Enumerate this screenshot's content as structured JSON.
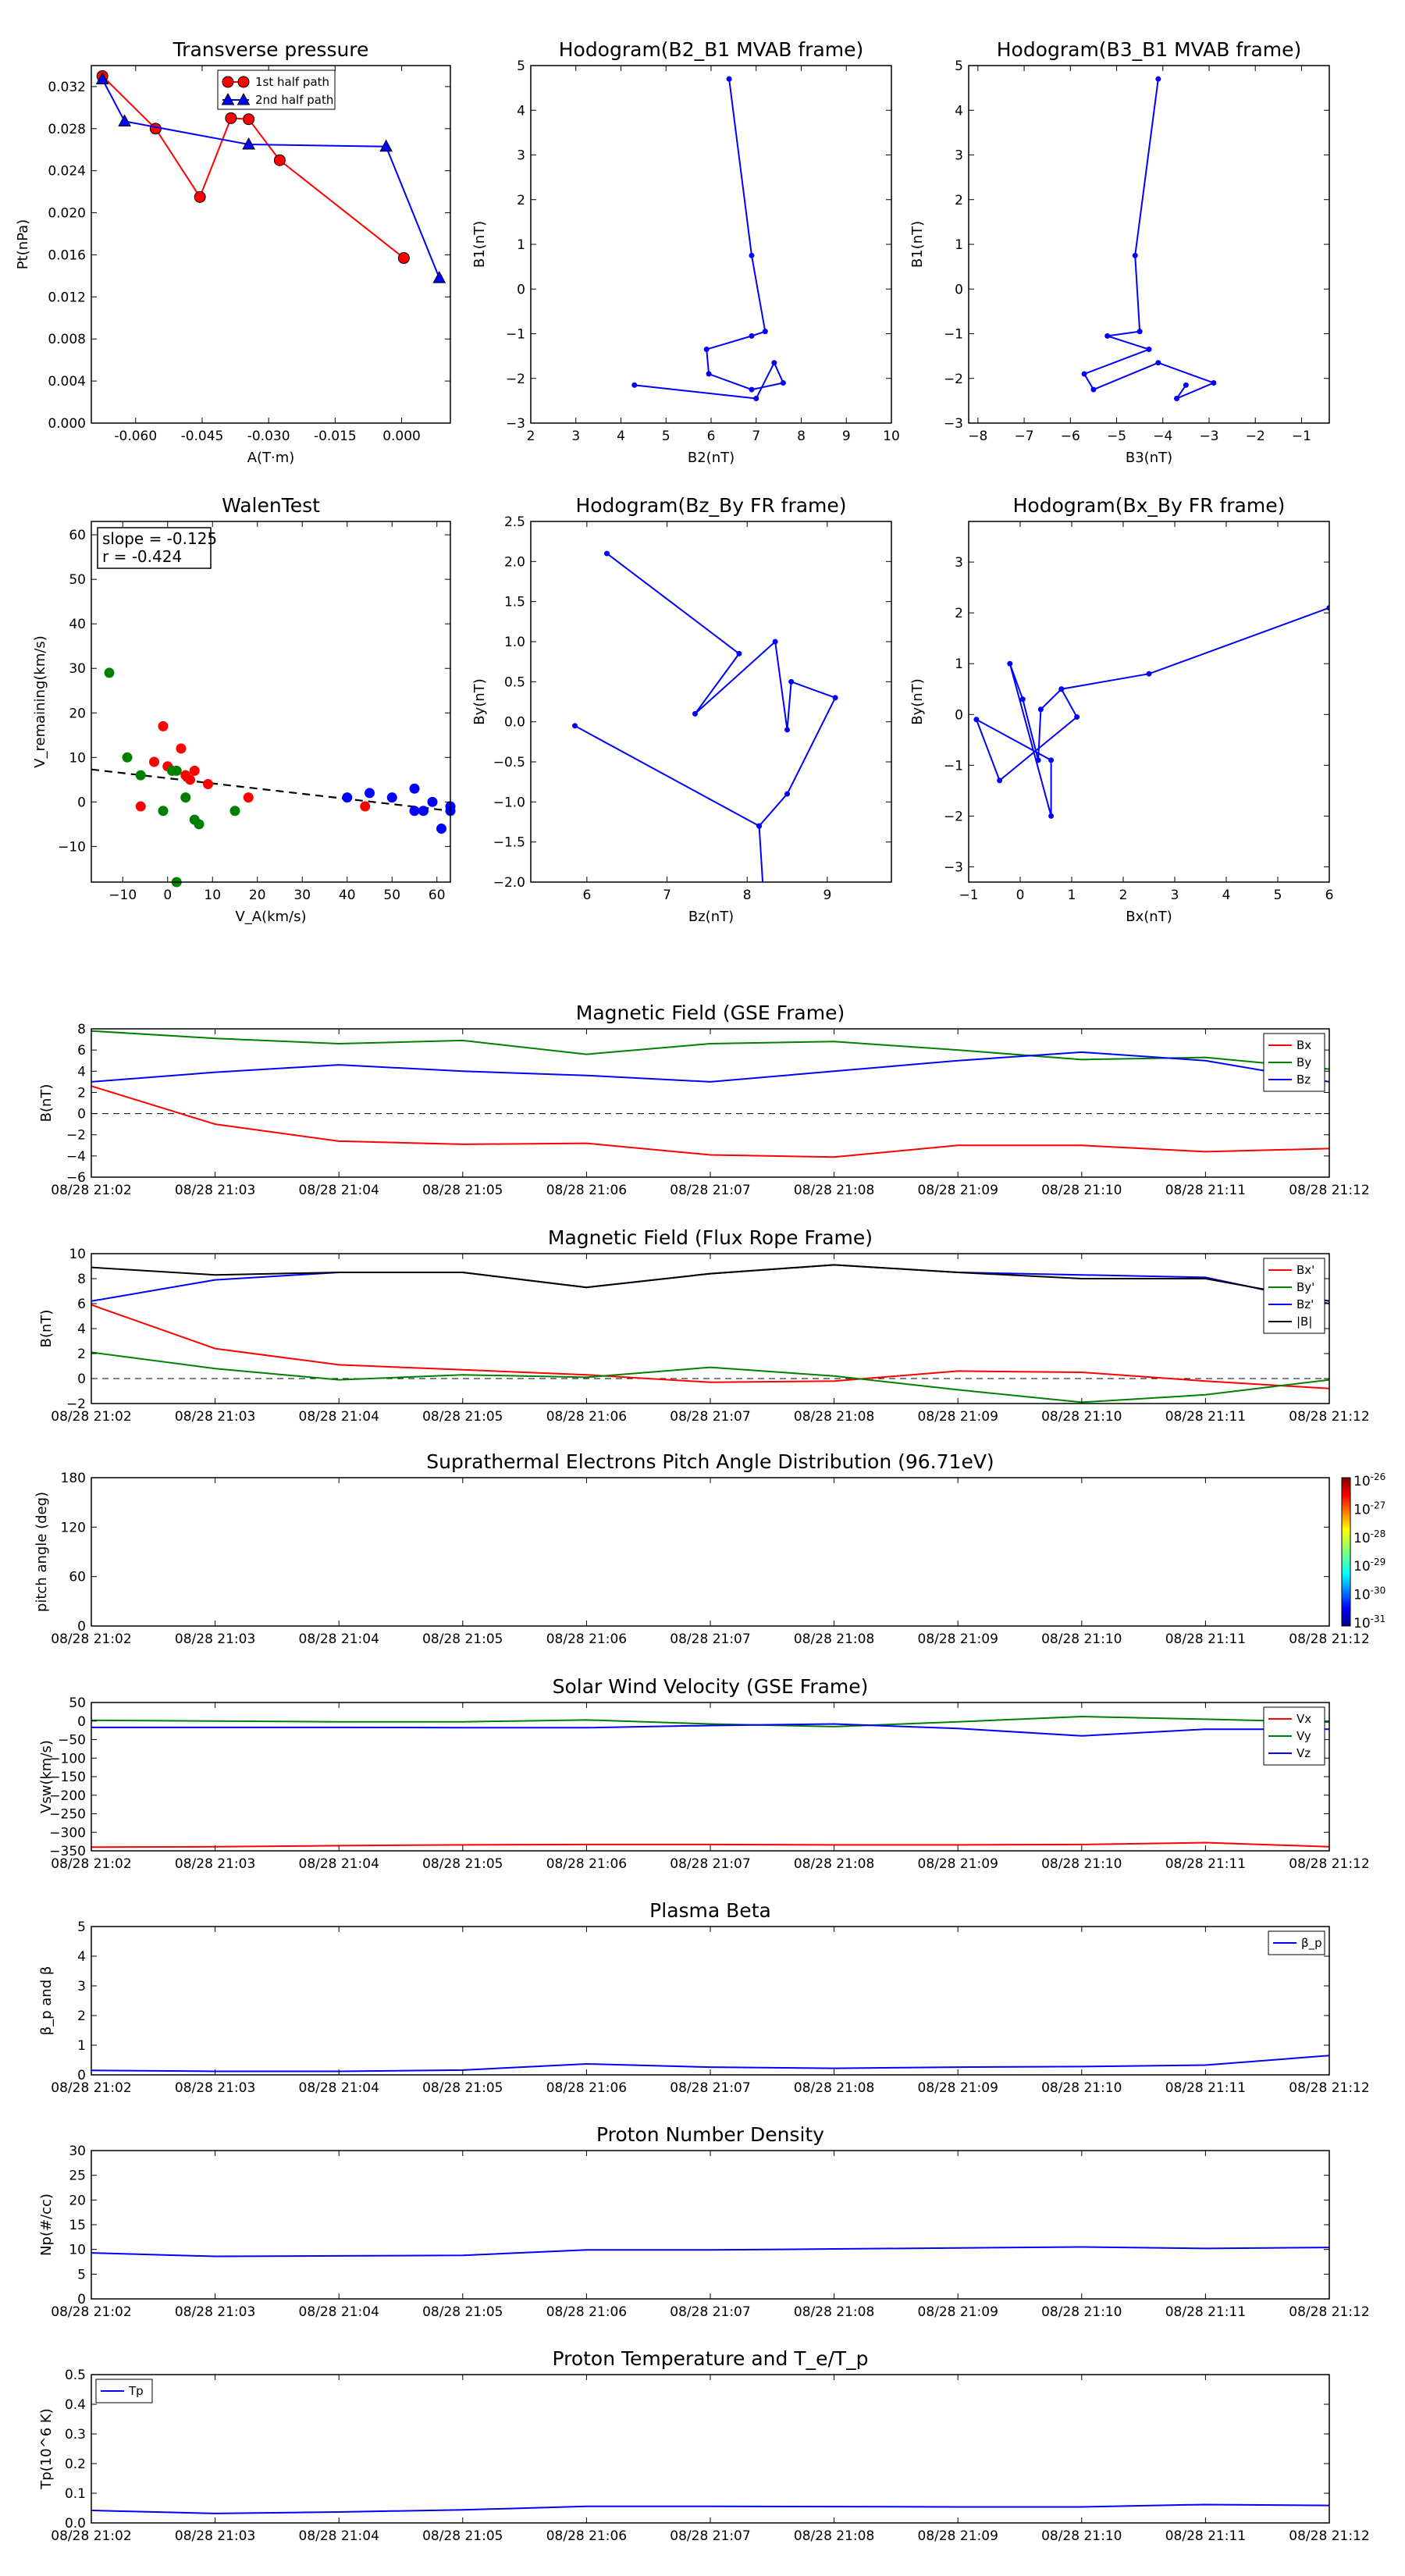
{
  "chart_data": [
    {
      "id": "transverse-pressure",
      "type": "line",
      "title": "Transverse pressure",
      "xlabel": "A(T·m)",
      "ylabel": "Pt(nPa)",
      "xlim": [
        -0.07,
        0.011
      ],
      "ylim": [
        0,
        0.034
      ],
      "xticks": [
        -0.06,
        -0.045,
        -0.03,
        -0.015,
        0.0
      ],
      "xtick_labels": [
        "-0.060",
        "-0.045",
        "-0.030",
        "-0.015",
        "0.000"
      ],
      "yticks": [
        0,
        0.004,
        0.008,
        0.012,
        0.016,
        0.02,
        0.024,
        0.028,
        0.032
      ],
      "ytick_labels": [
        "0.000",
        "0.004",
        "0.008",
        "0.012",
        "0.016",
        "0.020",
        "0.024",
        "0.028",
        "0.032"
      ],
      "legend_position": "top-center",
      "series": [
        {
          "name": "1st half path",
          "color": "#ff0000",
          "marker": "circle",
          "x": [
            -0.0675,
            -0.0555,
            -0.0455,
            -0.0385,
            -0.0345,
            -0.0275,
            0.0005
          ],
          "y": [
            0.033,
            0.028,
            0.0215,
            0.029,
            0.0289,
            0.025,
            0.0157
          ]
        },
        {
          "name": "2nd half path",
          "color": "#0000ff",
          "marker": "triangle",
          "x": [
            -0.0675,
            -0.0625,
            -0.0345,
            -0.0035,
            0.0085
          ],
          "y": [
            0.0327,
            0.0287,
            0.0265,
            0.0263,
            0.0138
          ]
        }
      ]
    },
    {
      "id": "hodogram-b2-b1",
      "type": "line",
      "title": "Hodogram(B2_B1 MVAB frame)",
      "xlabel": "B2(nT)",
      "ylabel": "B1(nT)",
      "xlim": [
        2,
        10
      ],
      "ylim": [
        -3,
        5
      ],
      "xticks": [
        2,
        3,
        4,
        5,
        6,
        7,
        8,
        9,
        10
      ],
      "yticks": [
        -3,
        -2,
        -1,
        0,
        1,
        2,
        3,
        4,
        5
      ],
      "series": [
        {
          "color": "#0000ff",
          "x": [
            6.4,
            6.9,
            7.2,
            6.9,
            5.9,
            5.95,
            6.9,
            7.6,
            7.4,
            7.0,
            4.3
          ],
          "y": [
            4.7,
            0.75,
            -0.95,
            -1.05,
            -1.35,
            -1.9,
            -2.25,
            -2.1,
            -1.65,
            -2.45,
            -2.15
          ]
        }
      ]
    },
    {
      "id": "hodogram-b3-b1",
      "type": "line",
      "title": "Hodogram(B3_B1 MVAB frame)",
      "xlabel": "B3(nT)",
      "ylabel": "B1(nT)",
      "xlim": [
        -8.2,
        -0.4
      ],
      "ylim": [
        -3,
        5
      ],
      "xticks": [
        -8,
        -7,
        -6,
        -5,
        -4,
        -3,
        -2,
        -1
      ],
      "yticks": [
        -3,
        -2,
        -1,
        0,
        1,
        2,
        3,
        4,
        5
      ],
      "series": [
        {
          "color": "#0000ff",
          "x": [
            -4.1,
            -4.6,
            -4.5,
            -5.2,
            -4.3,
            -5.7,
            -5.5,
            -4.1,
            -2.9,
            -3.7,
            -3.5
          ],
          "y": [
            4.7,
            0.75,
            -0.95,
            -1.05,
            -1.35,
            -1.9,
            -2.25,
            -1.65,
            -2.1,
            -2.45,
            -2.15
          ]
        }
      ]
    },
    {
      "id": "walen-test",
      "type": "scatter",
      "title": "WalenTest",
      "xlabel": "V_A(km/s)",
      "ylabel": "V_remaining(km/s)",
      "xlim": [
        -17,
        63
      ],
      "ylim": [
        -18,
        63
      ],
      "xticks": [
        -10,
        0,
        10,
        20,
        30,
        40,
        50,
        60
      ],
      "yticks": [
        -10,
        0,
        10,
        20,
        30,
        40,
        50,
        60
      ],
      "annotation": [
        "slope = -0.125",
        "r = -0.424"
      ],
      "fit_line": {
        "x": [
          -17,
          63
        ],
        "y": [
          7.3,
          -2.0
        ],
        "style": "dashed",
        "color": "#000000"
      },
      "series": [
        {
          "color": "#ff0000",
          "x": [
            -1,
            0,
            -6,
            -3,
            3,
            4,
            6,
            5,
            9,
            18,
            44
          ],
          "y": [
            17,
            8,
            -1,
            9,
            12,
            6,
            7,
            5,
            4,
            1,
            -1
          ]
        },
        {
          "color": "#008000",
          "x": [
            -13,
            -9,
            -6,
            1,
            2,
            4,
            6,
            7,
            15,
            2,
            -1
          ],
          "y": [
            29,
            10,
            6,
            7,
            7,
            1,
            -4,
            -5,
            -2,
            -18,
            -2
          ]
        },
        {
          "color": "#0000ff",
          "x": [
            40,
            45,
            50,
            55,
            55,
            57,
            59,
            61,
            63,
            63
          ],
          "y": [
            1,
            2,
            1,
            3,
            -2,
            -2,
            0,
            -6,
            -1,
            -2
          ]
        }
      ]
    },
    {
      "id": "hodogram-bz-by",
      "type": "line",
      "title": "Hodogram(Bz_By FR frame)",
      "xlabel": "Bz(nT)",
      "ylabel": "By(nT)",
      "xlim": [
        5.3,
        9.8
      ],
      "ylim": [
        -2.0,
        2.5
      ],
      "xticks": [
        6,
        7,
        8,
        9
      ],
      "yticks": [
        -2.0,
        -1.5,
        -1.0,
        -0.5,
        0.0,
        0.5,
        1.0,
        1.5,
        2.0,
        2.5
      ],
      "ytick_labels": [
        "−2.0",
        "−1.5",
        "−1.0",
        "−0.5",
        "0.0",
        "0.5",
        "1.0",
        "1.5",
        "2.0",
        "2.5"
      ],
      "series": [
        {
          "color": "#0000ff",
          "x": [
            6.25,
            7.9,
            7.35,
            8.35,
            8.5,
            8.55,
            9.1,
            8.5,
            8.15,
            8.2,
            8.15,
            5.85
          ],
          "y": [
            2.1,
            0.85,
            0.1,
            1.0,
            -0.1,
            0.5,
            0.3,
            -0.9,
            -1.3,
            -2.1,
            -1.3,
            -0.05
          ]
        }
      ]
    },
    {
      "id": "hodogram-bx-by",
      "type": "line",
      "title": "Hodogram(Bx_By FR frame)",
      "xlabel": "Bx(nT)",
      "ylabel": "By(nT)",
      "xlim": [
        -1,
        6
      ],
      "ylim": [
        -3.3,
        3.8
      ],
      "xticks": [
        -1,
        0,
        1,
        2,
        3,
        4,
        5,
        6
      ],
      "yticks": [
        -3,
        -2,
        -1,
        0,
        1,
        2,
        3
      ],
      "series": [
        {
          "color": "#0000ff",
          "x": [
            6.0,
            2.5,
            0.8,
            0.4,
            0.35,
            0.05,
            -0.2,
            0.6,
            0.6,
            -0.85,
            -0.4,
            1.1,
            0.8
          ],
          "y": [
            2.1,
            0.8,
            0.5,
            0.1,
            -0.9,
            0.3,
            1.0,
            -2.0,
            -0.9,
            -0.1,
            -1.3,
            -0.05,
            0.5
          ]
        }
      ]
    },
    {
      "id": "magnetic-field-gse",
      "type": "line",
      "title": "Magnetic Field (GSE Frame)",
      "ylabel": "B(nT)",
      "ylim": [
        -6,
        8
      ],
      "yticks": [
        -6,
        -4,
        -2,
        0,
        2,
        4,
        6,
        8
      ],
      "legend_position": "right",
      "zero_line": true,
      "x": [
        "08/28 21:02",
        "08/28 21:03",
        "08/28 21:04",
        "08/28 21:05",
        "08/28 21:06",
        "08/28 21:07",
        "08/28 21:08",
        "08/28 21:09",
        "08/28 21:10",
        "08/28 21:11",
        "08/28 21:12"
      ],
      "series": [
        {
          "name": "Bx",
          "color": "#ff0000",
          "values": [
            2.6,
            -1.0,
            -2.6,
            -2.9,
            -2.8,
            -3.9,
            -4.1,
            -3.0,
            -3.0,
            -3.6,
            -3.3
          ]
        },
        {
          "name": "By",
          "color": "#008000",
          "values": [
            7.8,
            7.1,
            6.6,
            6.9,
            5.6,
            6.6,
            6.8,
            6.0,
            5.1,
            5.3,
            4.2
          ]
        },
        {
          "name": "Bz",
          "color": "#0000ff",
          "values": [
            3.0,
            3.9,
            4.6,
            4.0,
            3.6,
            3.0,
            4.0,
            5.0,
            5.8,
            5.0,
            3.0
          ]
        }
      ]
    },
    {
      "id": "magnetic-field-fr",
      "type": "line",
      "title": "Magnetic Field (Flux Rope Frame)",
      "ylabel": "B(nT)",
      "ylim": [
        -2,
        10
      ],
      "yticks": [
        -2,
        0,
        2,
        4,
        6,
        8,
        10
      ],
      "legend_position": "right",
      "zero_line": true,
      "x": [
        "08/28 21:02",
        "08/28 21:03",
        "08/28 21:04",
        "08/28 21:05",
        "08/28 21:06",
        "08/28 21:07",
        "08/28 21:08",
        "08/28 21:09",
        "08/28 21:10",
        "08/28 21:11",
        "08/28 21:12"
      ],
      "series": [
        {
          "name": "Bx'",
          "color": "#ff0000",
          "values": [
            5.9,
            2.4,
            1.1,
            0.7,
            0.3,
            -0.3,
            -0.2,
            0.6,
            0.5,
            -0.2,
            -0.8
          ]
        },
        {
          "name": "By'",
          "color": "#008000",
          "values": [
            2.1,
            0.8,
            -0.1,
            0.3,
            0.1,
            0.9,
            0.2,
            -0.9,
            -1.9,
            -1.3,
            -0.1
          ]
        },
        {
          "name": "Bz'",
          "color": "#0000ff",
          "values": [
            6.2,
            7.9,
            8.5,
            8.5,
            7.3,
            8.4,
            9.1,
            8.5,
            8.3,
            8.1,
            6.0
          ]
        },
        {
          "name": "|B|",
          "color": "#000000",
          "values": [
            8.9,
            8.3,
            8.5,
            8.5,
            7.3,
            8.4,
            9.1,
            8.5,
            8.0,
            8.0,
            6.2
          ]
        }
      ]
    },
    {
      "id": "pitch-angle",
      "type": "heatmap",
      "title": "Suprathermal Electrons Pitch Angle Distribution (96.71eV)",
      "ylabel": "pitch angle (deg)",
      "ylim": [
        0,
        180
      ],
      "yticks": [
        0,
        60,
        120,
        180
      ],
      "x": [
        "08/28 21:02",
        "08/28 21:03",
        "08/28 21:04",
        "08/28 21:05",
        "08/28 21:06",
        "08/28 21:07",
        "08/28 21:08",
        "08/28 21:09",
        "08/28 21:10",
        "08/28 21:11",
        "08/28 21:12"
      ],
      "colorbar": {
        "ticks": [
          "10",
          "10",
          "10",
          "10",
          "10",
          "10"
        ],
        "exponents": [
          "-26",
          "-27",
          "-28",
          "-29",
          "-30",
          "-31"
        ]
      }
    },
    {
      "id": "solar-wind-velocity",
      "type": "line",
      "title": "Solar Wind Velocity (GSE Frame)",
      "ylabel": "Vsw(km/s)",
      "ylim": [
        -350,
        50
      ],
      "yticks": [
        -350,
        -300,
        -250,
        -200,
        -150,
        -100,
        -50,
        0,
        50
      ],
      "ytick_labels": [
        "−350",
        "−300",
        "−250",
        "−200",
        "−150",
        "−100",
        "−50",
        "0",
        "50"
      ],
      "legend_position": "right",
      "x": [
        "08/28 21:02",
        "08/28 21:03",
        "08/28 21:04",
        "08/28 21:05",
        "08/28 21:06",
        "08/28 21:07",
        "08/28 21:08",
        "08/28 21:09",
        "08/28 21:10",
        "08/28 21:11",
        "08/28 21:12"
      ],
      "series": [
        {
          "name": "Vx",
          "color": "#ff0000",
          "values": [
            -340,
            -339,
            -336,
            -334,
            -333,
            -333,
            -334,
            -334,
            -333,
            -328,
            -339
          ]
        },
        {
          "name": "Vy",
          "color": "#008000",
          "values": [
            2,
            0,
            -2,
            -2,
            3,
            -8,
            -15,
            -2,
            12,
            5,
            -3
          ]
        },
        {
          "name": "Vz",
          "color": "#0000ff",
          "values": [
            -17,
            -17,
            -17,
            -18,
            -18,
            -12,
            -8,
            -20,
            -40,
            -22,
            -22
          ]
        }
      ]
    },
    {
      "id": "plasma-beta",
      "type": "line",
      "title": "Plasma Beta",
      "ylabel": "β_p and β",
      "ylim": [
        0,
        5
      ],
      "yticks": [
        0,
        1,
        2,
        3,
        4,
        5
      ],
      "legend_position": "top-right",
      "x": [
        "08/28 21:02",
        "08/28 21:03",
        "08/28 21:04",
        "08/28 21:05",
        "08/28 21:06",
        "08/28 21:07",
        "08/28 21:08",
        "08/28 21:09",
        "08/28 21:10",
        "08/28 21:11",
        "08/28 21:12"
      ],
      "series": [
        {
          "name": "β_p",
          "color": "#0000ff",
          "values": [
            0.15,
            0.12,
            0.12,
            0.16,
            0.37,
            0.26,
            0.22,
            0.26,
            0.28,
            0.33,
            0.65
          ]
        }
      ]
    },
    {
      "id": "proton-density",
      "type": "line",
      "title": "Proton Number Density",
      "ylabel": "Np(#/cc)",
      "ylim": [
        0,
        30
      ],
      "yticks": [
        0,
        5,
        10,
        15,
        20,
        25,
        30
      ],
      "x": [
        "08/28 21:02",
        "08/28 21:03",
        "08/28 21:04",
        "08/28 21:05",
        "08/28 21:06",
        "08/28 21:07",
        "08/28 21:08",
        "08/28 21:09",
        "08/28 21:10",
        "08/28 21:11",
        "08/28 21:12"
      ],
      "series": [
        {
          "color": "#0000ff",
          "values": [
            9.3,
            8.6,
            8.7,
            8.8,
            9.9,
            9.9,
            10.1,
            10.3,
            10.5,
            10.2,
            10.4
          ]
        }
      ]
    },
    {
      "id": "proton-temperature",
      "type": "line",
      "title": "Proton Temperature and T_e/T_p",
      "ylabel": "Tp(10^6 K)",
      "ylim": [
        0,
        0.5
      ],
      "yticks": [
        0,
        0.1,
        0.2,
        0.3,
        0.4,
        0.5
      ],
      "ytick_labels": [
        "0.0",
        "0.1",
        "0.2",
        "0.3",
        "0.4",
        "0.5"
      ],
      "legend_position": "top-left",
      "x": [
        "08/28 21:02",
        "08/28 21:03",
        "08/28 21:04",
        "08/28 21:05",
        "08/28 21:06",
        "08/28 21:07",
        "08/28 21:08",
        "08/28 21:09",
        "08/28 21:10",
        "08/28 21:11",
        "08/28 21:12"
      ],
      "series": [
        {
          "name": "Tp",
          "color": "#0000ff",
          "values": [
            0.042,
            0.032,
            0.037,
            0.044,
            0.056,
            0.056,
            0.055,
            0.054,
            0.054,
            0.062,
            0.059
          ]
        }
      ]
    }
  ]
}
